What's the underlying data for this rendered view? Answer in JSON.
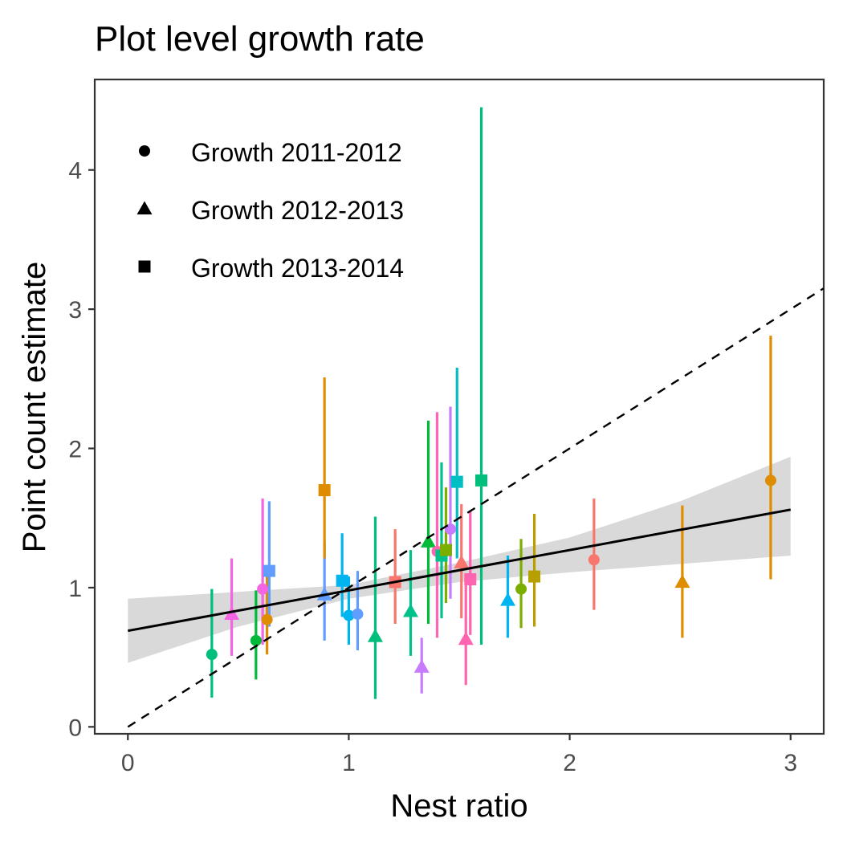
{
  "chart_data": {
    "type": "scatter",
    "title": "Plot level growth rate",
    "xlabel": "Nest ratio",
    "ylabel": "Point count estimate",
    "xlim": [
      -0.15,
      3.15
    ],
    "ylim": [
      -0.05,
      4.65
    ],
    "x_ticks": [
      0,
      1,
      2,
      3
    ],
    "y_ticks": [
      0,
      1,
      2,
      3,
      4
    ],
    "grid": false,
    "legend_position": "top-left",
    "legend": [
      {
        "label": "Growth 2011-2012",
        "shape": "circle"
      },
      {
        "label": "Growth 2012-2013",
        "shape": "triangle"
      },
      {
        "label": "Growth 2013-2014",
        "shape": "square"
      }
    ],
    "reference_line": {
      "style": "dashed",
      "color": "#000000",
      "intercept": 0,
      "slope": 1,
      "x_range": [
        0,
        3.15
      ]
    },
    "regression": {
      "color": "#000000",
      "ribbon_color": "#d9d9d9",
      "line": [
        [
          0,
          0.69
        ],
        [
          3,
          1.56
        ]
      ],
      "ribbon_upper": [
        [
          0,
          0.92
        ],
        [
          1,
          1.02
        ],
        [
          1.5,
          1.18
        ],
        [
          2,
          1.36
        ],
        [
          2.5,
          1.62
        ],
        [
          3,
          1.94
        ]
      ],
      "ribbon_lower": [
        [
          0,
          0.46
        ],
        [
          0.5,
          0.72
        ],
        [
          1,
          0.92
        ],
        [
          1.5,
          1.04
        ],
        [
          2,
          1.11
        ],
        [
          2.5,
          1.17
        ],
        [
          3,
          1.23
        ]
      ]
    },
    "points": [
      {
        "x": 0.38,
        "y": 0.52,
        "lo": 0.21,
        "hi": 0.99,
        "shape": "circle",
        "color": "#00BF7D"
      },
      {
        "x": 0.47,
        "y": 0.81,
        "lo": 0.51,
        "hi": 1.21,
        "shape": "triangle",
        "color": "#F564E3"
      },
      {
        "x": 0.58,
        "y": 0.62,
        "lo": 0.34,
        "hi": 0.98,
        "shape": "circle",
        "color": "#00BA38"
      },
      {
        "x": 0.61,
        "y": 0.99,
        "lo": 0.59,
        "hi": 1.64,
        "shape": "circle",
        "color": "#F564E3"
      },
      {
        "x": 0.63,
        "y": 0.77,
        "lo": 0.52,
        "hi": 1.1,
        "shape": "circle",
        "color": "#DE8C00"
      },
      {
        "x": 0.64,
        "y": 1.12,
        "lo": 0.72,
        "hi": 1.62,
        "shape": "square",
        "color": "#619CFF"
      },
      {
        "x": 0.89,
        "y": 0.95,
        "lo": 0.62,
        "hi": 1.33,
        "shape": "triangle",
        "color": "#619CFF"
      },
      {
        "x": 0.89,
        "y": 1.7,
        "lo": 1.21,
        "hi": 2.51,
        "shape": "square",
        "color": "#DE8C00"
      },
      {
        "x": 0.97,
        "y": 1.05,
        "lo": 0.79,
        "hi": 1.39,
        "shape": "square",
        "color": "#00B4F0"
      },
      {
        "x": 1.0,
        "y": 0.8,
        "lo": 0.59,
        "hi": 1.08,
        "shape": "circle",
        "color": "#00B4F0"
      },
      {
        "x": 1.04,
        "y": 0.81,
        "lo": 0.55,
        "hi": 1.12,
        "shape": "circle",
        "color": "#619CFF"
      },
      {
        "x": 1.12,
        "y": 0.65,
        "lo": 0.2,
        "hi": 1.51,
        "shape": "triangle",
        "color": "#00BF7D"
      },
      {
        "x": 1.21,
        "y": 1.04,
        "lo": 0.74,
        "hi": 1.42,
        "shape": "square",
        "color": "#F8766D"
      },
      {
        "x": 1.28,
        "y": 0.83,
        "lo": 0.51,
        "hi": 1.27,
        "shape": "triangle",
        "color": "#00C08B"
      },
      {
        "x": 1.33,
        "y": 0.43,
        "lo": 0.24,
        "hi": 0.64,
        "shape": "triangle",
        "color": "#C77CFF"
      },
      {
        "x": 1.36,
        "y": 1.33,
        "lo": 0.74,
        "hi": 2.2,
        "shape": "triangle",
        "color": "#00BA38"
      },
      {
        "x": 1.4,
        "y": 1.26,
        "lo": 0.64,
        "hi": 2.26,
        "shape": "circle",
        "color": "#FF64B0"
      },
      {
        "x": 1.42,
        "y": 1.23,
        "lo": 0.78,
        "hi": 1.9,
        "shape": "square",
        "color": "#00C08B"
      },
      {
        "x": 1.44,
        "y": 1.27,
        "lo": 0.89,
        "hi": 1.72,
        "shape": "square",
        "color": "#7CAE00"
      },
      {
        "x": 1.46,
        "y": 1.42,
        "lo": 0.92,
        "hi": 2.3,
        "shape": "circle",
        "color": "#C77CFF"
      },
      {
        "x": 1.49,
        "y": 1.76,
        "lo": 1.21,
        "hi": 2.58,
        "shape": "square",
        "color": "#00BFC4"
      },
      {
        "x": 1.51,
        "y": 1.18,
        "lo": 0.78,
        "hi": 1.6,
        "shape": "triangle",
        "color": "#F8766D"
      },
      {
        "x": 1.53,
        "y": 0.63,
        "lo": 0.3,
        "hi": 1.07,
        "shape": "triangle",
        "color": "#FF64B0"
      },
      {
        "x": 1.55,
        "y": 1.06,
        "lo": 0.66,
        "hi": 1.55,
        "shape": "square",
        "color": "#FF64B0"
      },
      {
        "x": 1.6,
        "y": 1.77,
        "lo": 0.59,
        "hi": 4.45,
        "shape": "square",
        "color": "#00BF7D"
      },
      {
        "x": 1.72,
        "y": 0.91,
        "lo": 0.64,
        "hi": 1.23,
        "shape": "triangle",
        "color": "#00B4F0"
      },
      {
        "x": 1.78,
        "y": 0.99,
        "lo": 0.71,
        "hi": 1.35,
        "shape": "circle",
        "color": "#7CAE00"
      },
      {
        "x": 1.84,
        "y": 1.08,
        "lo": 0.72,
        "hi": 1.53,
        "shape": "square",
        "color": "#B79F00"
      },
      {
        "x": 2.11,
        "y": 1.2,
        "lo": 0.84,
        "hi": 1.64,
        "shape": "circle",
        "color": "#F8766D"
      },
      {
        "x": 2.51,
        "y": 1.04,
        "lo": 0.64,
        "hi": 1.59,
        "shape": "triangle",
        "color": "#DE8C00"
      },
      {
        "x": 2.91,
        "y": 1.77,
        "lo": 1.06,
        "hi": 2.81,
        "shape": "circle",
        "color": "#DE8C00"
      }
    ]
  }
}
